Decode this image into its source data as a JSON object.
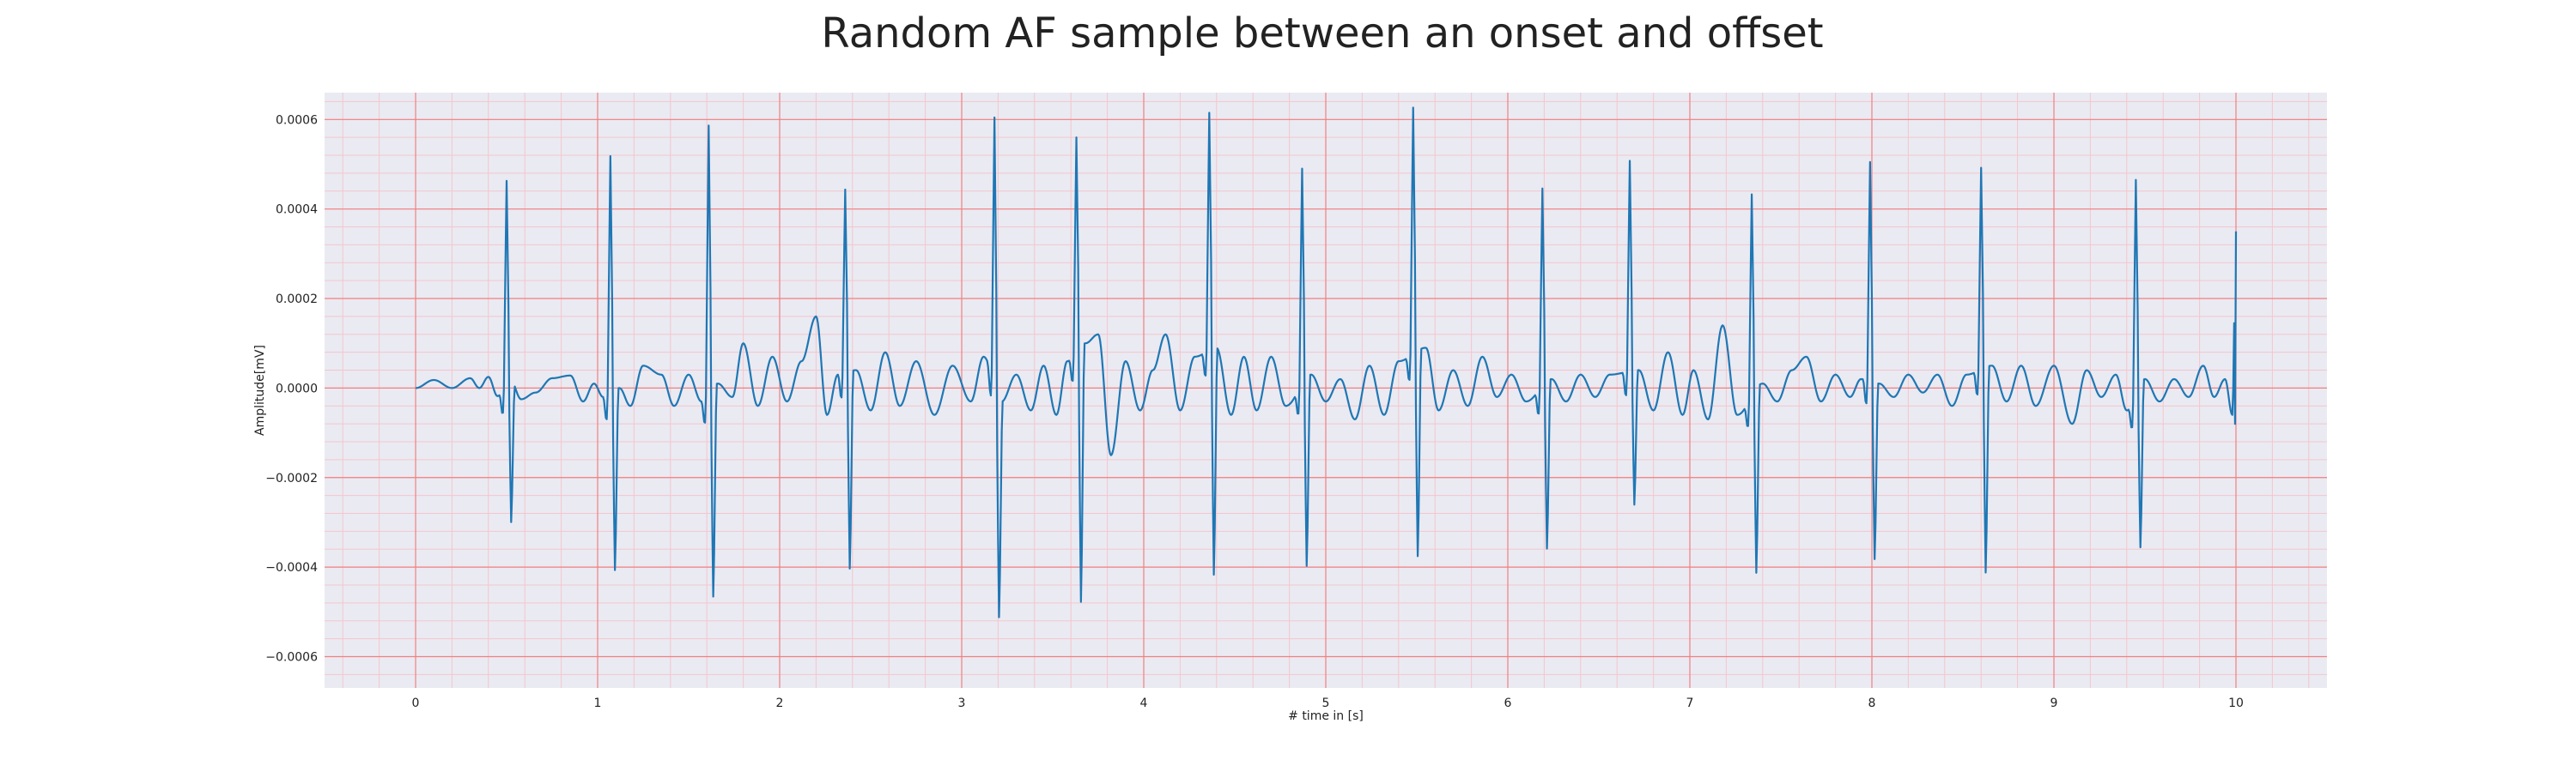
{
  "chart_data": {
    "type": "line",
    "title": "Random AF sample between an onset and offset",
    "xlabel": "# time in [s]",
    "ylabel": "Amplitude[mV]",
    "xlim": [
      -0.5,
      10.5
    ],
    "ylim": [
      -0.00067,
      0.00066
    ],
    "xticks": [
      0,
      1,
      2,
      3,
      4,
      5,
      6,
      7,
      8,
      9,
      10
    ],
    "xtick_labels": [
      "0",
      "1",
      "2",
      "3",
      "4",
      "5",
      "6",
      "7",
      "8",
      "9",
      "10"
    ],
    "yticks": [
      0.0006,
      0.0004,
      0.0002,
      0.0,
      -0.0002,
      -0.0004,
      -0.0006
    ],
    "ytick_labels": [
      "0.0006",
      "0.0004",
      "0.0002",
      "0.0000",
      "−0.0002",
      "−0.0004",
      "−0.0006"
    ],
    "grid": true,
    "minor_grid": true,
    "colors": {
      "background": "#eaeaf2",
      "major_grid": "#f08080",
      "minor_grid": "#f4c6cc",
      "line": "#1f77b4"
    },
    "sampling_rate_hz": 200,
    "beats": [
      {
        "t": 0.5,
        "r": 0.00045,
        "s": -0.00034
      },
      {
        "t": 1.07,
        "r": 0.00053,
        "s": -0.00043
      },
      {
        "t": 1.61,
        "r": 0.0006,
        "s": -0.0005
      },
      {
        "t": 2.36,
        "r": 0.00041,
        "s": -0.00047
      },
      {
        "t": 3.18,
        "r": 0.0006,
        "s": -0.00052
      },
      {
        "t": 3.63,
        "r": 0.00048,
        "s": -0.00061
      },
      {
        "t": 4.36,
        "r": 0.00053,
        "s": -0.00054
      },
      {
        "t": 4.87,
        "r": 0.00048,
        "s": -0.00045
      },
      {
        "t": 5.48,
        "r": 0.00055,
        "s": -0.00049
      },
      {
        "t": 6.19,
        "r": 0.00044,
        "s": -0.0004
      },
      {
        "t": 6.67,
        "r": 0.00047,
        "s": -0.00032
      },
      {
        "t": 7.34,
        "r": 0.00045,
        "s": -0.00044
      },
      {
        "t": 7.99,
        "r": 0.00049,
        "s": -0.00042
      },
      {
        "t": 8.6,
        "r": 0.00045,
        "s": -0.00049
      },
      {
        "t": 9.45,
        "r": 0.00048,
        "s": -0.00039
      }
    ],
    "series": [
      {
        "values": [
          [
            0.0,
            0.0
          ],
          [
            0.1,
            1.8e-05
          ],
          [
            0.2,
            0.0
          ],
          [
            0.3,
            2.2e-05
          ],
          [
            0.35,
            0.0
          ],
          [
            0.4,
            2.5e-05
          ],
          [
            0.45,
            -1.8e-05
          ],
          [
            0.52,
            2e-05
          ],
          [
            0.58,
            -2.5e-05
          ],
          [
            0.66,
            -1e-05
          ],
          [
            0.75,
            2.2e-05
          ],
          [
            0.85,
            2.8e-05
          ],
          [
            0.92,
            -3e-05
          ],
          [
            0.98,
            1e-05
          ],
          [
            1.03,
            -2e-05
          ],
          [
            1.12,
            0.0
          ],
          [
            1.18,
            -4e-05
          ],
          [
            1.25,
            5e-05
          ],
          [
            1.35,
            3e-05
          ],
          [
            1.42,
            -4e-05
          ],
          [
            1.5,
            3e-05
          ],
          [
            1.57,
            -3e-05
          ],
          [
            1.66,
            1e-05
          ],
          [
            1.74,
            -2e-05
          ],
          [
            1.8,
            0.0001
          ],
          [
            1.88,
            -4e-05
          ],
          [
            1.96,
            7e-05
          ],
          [
            2.04,
            -3e-05
          ],
          [
            2.12,
            6e-05
          ],
          [
            2.2,
            0.00016
          ],
          [
            2.26,
            -6e-05
          ],
          [
            2.32,
            3e-05
          ],
          [
            2.42,
            4e-05
          ],
          [
            2.5,
            -5e-05
          ],
          [
            2.58,
            8e-05
          ],
          [
            2.66,
            -4e-05
          ],
          [
            2.75,
            6e-05
          ],
          [
            2.85,
            -6e-05
          ],
          [
            2.95,
            5e-05
          ],
          [
            3.05,
            -3e-05
          ],
          [
            3.12,
            7e-05
          ],
          [
            3.22,
            -3e-05
          ],
          [
            3.3,
            3e-05
          ],
          [
            3.38,
            -5e-05
          ],
          [
            3.45,
            5e-05
          ],
          [
            3.52,
            -6e-05
          ],
          [
            3.58,
            6e-05
          ],
          [
            3.68,
            0.0001
          ],
          [
            3.75,
            0.00012
          ],
          [
            3.82,
            -0.00015
          ],
          [
            3.9,
            6e-05
          ],
          [
            3.98,
            -5e-05
          ],
          [
            4.05,
            4e-05
          ],
          [
            4.12,
            0.00012
          ],
          [
            4.2,
            -5e-05
          ],
          [
            4.28,
            7e-05
          ],
          [
            4.4,
            9e-05
          ],
          [
            4.48,
            -6e-05
          ],
          [
            4.55,
            7e-05
          ],
          [
            4.62,
            -5e-05
          ],
          [
            4.7,
            7e-05
          ],
          [
            4.78,
            -4e-05
          ],
          [
            4.92,
            3e-05
          ],
          [
            5.0,
            -3e-05
          ],
          [
            5.08,
            2e-05
          ],
          [
            5.16,
            -7e-05
          ],
          [
            5.24,
            5e-05
          ],
          [
            5.32,
            -6e-05
          ],
          [
            5.4,
            6e-05
          ],
          [
            5.55,
            9e-05
          ],
          [
            5.62,
            -5e-05
          ],
          [
            5.7,
            4e-05
          ],
          [
            5.78,
            -4e-05
          ],
          [
            5.86,
            7e-05
          ],
          [
            5.94,
            -2e-05
          ],
          [
            6.02,
            3e-05
          ],
          [
            6.1,
            -3e-05
          ],
          [
            6.24,
            2e-05
          ],
          [
            6.32,
            -3e-05
          ],
          [
            6.4,
            3e-05
          ],
          [
            6.48,
            -2e-05
          ],
          [
            6.56,
            3e-05
          ],
          [
            6.72,
            4e-05
          ],
          [
            6.8,
            -5e-05
          ],
          [
            6.88,
            8e-05
          ],
          [
            6.96,
            -6e-05
          ],
          [
            7.02,
            4e-05
          ],
          [
            7.1,
            -7e-05
          ],
          [
            7.18,
            0.00014
          ],
          [
            7.26,
            -6e-05
          ],
          [
            7.4,
            1e-05
          ],
          [
            7.48,
            -3e-05
          ],
          [
            7.56,
            4e-05
          ],
          [
            7.64,
            7e-05
          ],
          [
            7.72,
            -3e-05
          ],
          [
            7.8,
            3e-05
          ],
          [
            7.88,
            -2e-05
          ],
          [
            7.94,
            2e-05
          ],
          [
            8.04,
            1e-05
          ],
          [
            8.12,
            -2e-05
          ],
          [
            8.2,
            3e-05
          ],
          [
            8.28,
            -1e-05
          ],
          [
            8.36,
            3e-05
          ],
          [
            8.44,
            -4e-05
          ],
          [
            8.52,
            3e-05
          ],
          [
            8.66,
            5e-05
          ],
          [
            8.74,
            -3e-05
          ],
          [
            8.82,
            5e-05
          ],
          [
            8.9,
            -4e-05
          ],
          [
            9.0,
            5e-05
          ],
          [
            9.1,
            -8e-05
          ],
          [
            9.18,
            4e-05
          ],
          [
            9.26,
            -2e-05
          ],
          [
            9.34,
            3e-05
          ],
          [
            9.4,
            -5e-05
          ],
          [
            9.5,
            2e-05
          ],
          [
            9.58,
            -3e-05
          ],
          [
            9.66,
            2e-05
          ],
          [
            9.74,
            -2e-05
          ],
          [
            9.82,
            5e-05
          ],
          [
            9.88,
            -2e-05
          ],
          [
            9.94,
            2e-05
          ],
          [
            9.98,
            -6e-05
          ],
          [
            10.0,
            0.00035
          ]
        ]
      }
    ]
  }
}
